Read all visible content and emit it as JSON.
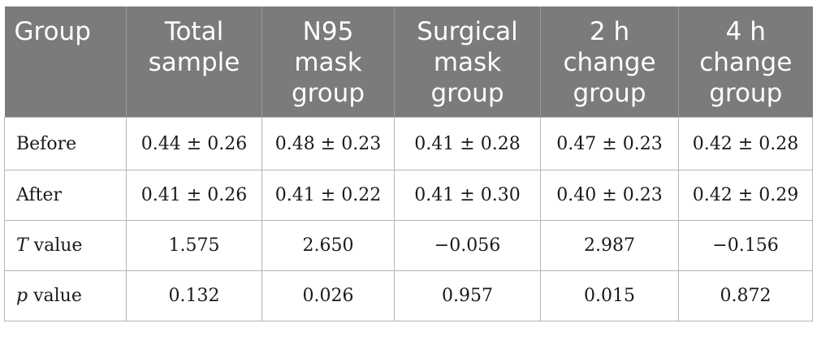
{
  "header": {
    "group": "Group",
    "total_sample": [
      "Total",
      "sample"
    ],
    "n95": [
      "N95",
      "mask",
      "group"
    ],
    "surgical": [
      "Surgical",
      "mask",
      "group"
    ],
    "two_h": [
      "2 h",
      "change",
      "group"
    ],
    "four_h": [
      "4 h",
      "change",
      "group"
    ]
  },
  "rows": [
    {
      "label": "Before",
      "cells": [
        "0.44 ± 0.26",
        "0.48 ± 0.23",
        "0.41 ± 0.28",
        "0.47 ± 0.23",
        "0.42 ± 0.28"
      ]
    },
    {
      "label": "After",
      "cells": [
        "0.41 ± 0.26",
        "0.41 ± 0.22",
        "0.41 ± 0.30",
        "0.40 ± 0.23",
        "0.42 ± 0.29"
      ]
    },
    {
      "label_italic": "T",
      "label_rest": " value",
      "cells": [
        "1.575",
        "2.650",
        "−0.056",
        "2.987",
        "−0.156"
      ]
    },
    {
      "label_italic": "p",
      "label_rest": " value",
      "cells": [
        "0.132",
        "0.026",
        "0.957",
        "0.015",
        "0.872"
      ]
    }
  ],
  "colors": {
    "header_bg": "#7b7b7b",
    "header_text": "#ffffff",
    "border": "#b5b5b5"
  }
}
